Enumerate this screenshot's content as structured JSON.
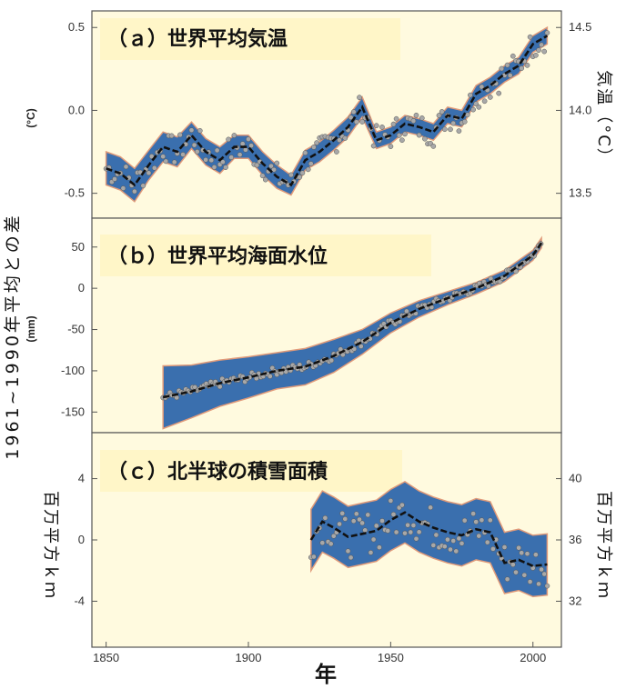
{
  "figure": {
    "y_shared_label": "1961~1990年平均との差",
    "x_label": "年",
    "x_ticks": [
      "1850",
      "1900",
      "1950",
      "2000"
    ],
    "colors": {
      "panel_bg": "#fffadf",
      "title_box": "#fff6c8",
      "band_fill": "#3a6fae",
      "band_edge": "#e09a7a",
      "line": "#111111",
      "points": "#a8a8a8"
    }
  },
  "chart_data": [
    {
      "type": "line",
      "title": "（ａ）世界平均気温",
      "ylabel": "(°C)",
      "ylabel_right": "気温（°C）",
      "xlim": [
        1845,
        2010
      ],
      "ylim": [
        -0.65,
        0.6
      ],
      "yticks": [
        "0.5",
        "0.0",
        "-0.5"
      ],
      "yticks_right": [
        "14.5",
        "14.0",
        "13.5"
      ],
      "x": [
        1850,
        1855,
        1860,
        1865,
        1870,
        1875,
        1880,
        1885,
        1890,
        1895,
        1900,
        1905,
        1910,
        1915,
        1920,
        1925,
        1930,
        1935,
        1940,
        1945,
        1950,
        1955,
        1960,
        1965,
        1970,
        1975,
        1980,
        1985,
        1990,
        1995,
        2000,
        2005
      ],
      "smoothed": [
        -0.35,
        -0.38,
        -0.45,
        -0.33,
        -0.22,
        -0.25,
        -0.15,
        -0.25,
        -0.3,
        -0.22,
        -0.22,
        -0.32,
        -0.4,
        -0.45,
        -0.3,
        -0.25,
        -0.18,
        -0.1,
        0.02,
        -0.18,
        -0.15,
        -0.08,
        -0.1,
        -0.13,
        -0.03,
        -0.05,
        0.1,
        0.15,
        0.22,
        0.27,
        0.4,
        0.45
      ],
      "band_halfwidth": [
        0.1,
        0.1,
        0.1,
        0.09,
        0.09,
        0.09,
        0.08,
        0.08,
        0.08,
        0.07,
        0.07,
        0.07,
        0.07,
        0.06,
        0.06,
        0.06,
        0.06,
        0.06,
        0.06,
        0.05,
        0.05,
        0.05,
        0.05,
        0.05,
        0.05,
        0.05,
        0.05,
        0.05,
        0.05,
        0.05,
        0.05,
        0.05
      ]
    },
    {
      "type": "line",
      "title": "（ｂ）世界平均海面水位",
      "ylabel": "(mm)",
      "xlim": [
        1845,
        2010
      ],
      "ylim": [
        -175,
        85
      ],
      "yticks": [
        "50",
        "0",
        "-50",
        "-100",
        "-150"
      ],
      "x": [
        1870,
        1880,
        1890,
        1900,
        1910,
        1920,
        1930,
        1940,
        1950,
        1960,
        1970,
        1980,
        1990,
        2000,
        2003
      ],
      "smoothed": [
        -132,
        -125,
        -115,
        -108,
        -100,
        -95,
        -82,
        -65,
        -42,
        -25,
        -12,
        0,
        15,
        40,
        55
      ],
      "band_halfwidth": [
        38,
        32,
        28,
        25,
        22,
        22,
        20,
        15,
        12,
        10,
        8,
        7,
        7,
        6,
        6
      ]
    },
    {
      "type": "line",
      "title": "（ｃ）北半球の積雪面積",
      "ylabel": "百万平方ｋｍ",
      "ylabel_right": "百万平方ｋｍ",
      "xlim": [
        1845,
        2010
      ],
      "ylim": [
        -7,
        7
      ],
      "yticks": [
        "4",
        "0",
        "-4"
      ],
      "yticks_right": [
        "40",
        "36",
        "32"
      ],
      "x": [
        1922,
        1926,
        1930,
        1935,
        1940,
        1945,
        1950,
        1955,
        1960,
        1965,
        1970,
        1975,
        1980,
        1985,
        1990,
        1995,
        2000,
        2005
      ],
      "smoothed": [
        0.0,
        1.2,
        0.8,
        0.2,
        0.4,
        0.6,
        1.3,
        1.8,
        1.2,
        0.8,
        0.5,
        0.3,
        0.7,
        0.5,
        -1.5,
        -1.3,
        -1.7,
        -1.6
      ],
      "band_halfwidth": [
        2.0,
        2.0,
        2.0,
        2.0,
        2.0,
        2.0,
        2.0,
        2.0,
        2.0,
        2.0,
        2.0,
        2.0,
        2.0,
        2.0,
        2.0,
        2.0,
        2.0,
        2.0
      ]
    }
  ]
}
